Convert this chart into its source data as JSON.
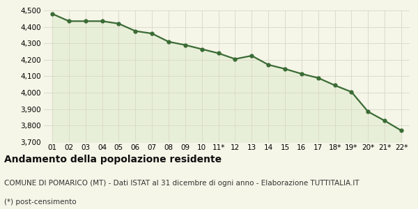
{
  "x_labels": [
    "01",
    "02",
    "03",
    "04",
    "05",
    "06",
    "07",
    "08",
    "09",
    "10",
    "11*",
    "12",
    "13",
    "14",
    "15",
    "16",
    "17",
    "18*",
    "19*",
    "20*",
    "21*",
    "22*"
  ],
  "y_values": [
    4480,
    4435,
    4435,
    4435,
    4420,
    4375,
    4360,
    4310,
    4290,
    4265,
    4240,
    4205,
    4225,
    4170,
    4145,
    4115,
    4090,
    4045,
    4005,
    3885,
    3830,
    3770
  ],
  "line_color": "#3a6b35",
  "fill_color": "#e8efd8",
  "marker": "o",
  "marker_size": 3.5,
  "linewidth": 1.6,
  "ylim": [
    3700,
    4500
  ],
  "yticks": [
    3700,
    3800,
    3900,
    4000,
    4100,
    4200,
    4300,
    4400,
    4500
  ],
  "background_color": "#f5f5e8",
  "grid_color": "#d8d8c8",
  "title": "Andamento della popolazione residente",
  "subtitle": "COMUNE DI POMARICO (MT) - Dati ISTAT al 31 dicembre di ogni anno - Elaborazione TUTTITALIA.IT",
  "footnote": "(*) post-censimento",
  "title_fontsize": 10,
  "subtitle_fontsize": 7.5,
  "footnote_fontsize": 7.5,
  "tick_fontsize": 7.5
}
